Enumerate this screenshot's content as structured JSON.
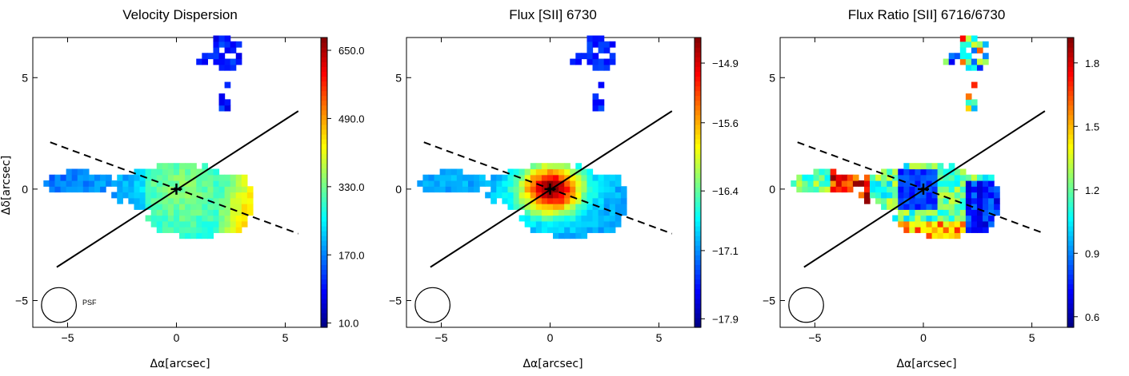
{
  "chart_data": [
    {
      "type": "heatmap",
      "title": "Velocity Dispersion",
      "xlabel": "Δα[arcsec]",
      "ylabel": "Δδ[arcsec]",
      "xlim": [
        -6.6,
        6.6
      ],
      "ylim": [
        -6.2,
        6.8
      ],
      "xticks": [
        -5,
        0,
        5
      ],
      "yticks": [
        -5,
        0,
        5
      ],
      "colorbar": {
        "range": [
          0,
          680
        ],
        "ticks": [
          10.0,
          170.0,
          330.0,
          490.0,
          650.0
        ],
        "tick_labels": [
          "10.0",
          "170.0",
          "330.0",
          "490.0",
          "650.0"
        ],
        "colormap": "jet"
      },
      "psf_label": "PSF",
      "psf": {
        "x": -5.4,
        "y": -5.2,
        "radius": 0.8
      },
      "center_marker": {
        "x": 0,
        "y": 0
      },
      "solid_line": [
        [
          -5.5,
          -3.5
        ],
        [
          5.6,
          3.5
        ]
      ],
      "dashed_line": [
        [
          -5.8,
          2.1
        ],
        [
          5.6,
          -2.0
        ]
      ]
    },
    {
      "type": "heatmap",
      "title": "Flux [SII] 6730",
      "xlabel": "Δα[arcsec]",
      "ylabel": "",
      "xlim": [
        -6.6,
        6.6
      ],
      "ylim": [
        -6.2,
        6.8
      ],
      "xticks": [
        -5,
        0,
        5
      ],
      "yticks": [
        -5,
        0,
        5
      ],
      "colorbar": {
        "range": [
          -18.0,
          -14.6
        ],
        "ticks": [
          -17.9,
          -17.1,
          -16.4,
          -15.6,
          -14.9
        ],
        "tick_labels": [
          "−17.9",
          "−17.1",
          "−16.4",
          "−15.6",
          "−14.9"
        ],
        "colormap": "jet"
      },
      "psf_label": "",
      "psf": {
        "x": -5.4,
        "y": -5.2,
        "radius": 0.8
      },
      "center_marker": {
        "x": 0,
        "y": 0
      },
      "solid_line": [
        [
          -5.5,
          -3.5
        ],
        [
          5.6,
          3.5
        ]
      ],
      "dashed_line": [
        [
          -5.8,
          2.1
        ],
        [
          5.6,
          -2.0
        ]
      ]
    },
    {
      "type": "heatmap",
      "title": "Flux Ratio [SII] 6716/6730",
      "xlabel": "Δα[arcsec]",
      "ylabel": "",
      "xlim": [
        -6.6,
        6.6
      ],
      "ylim": [
        -6.2,
        6.8
      ],
      "xticks": [
        -5,
        0,
        5
      ],
      "yticks": [
        -5,
        0,
        5
      ],
      "colorbar": {
        "range": [
          0.55,
          1.92
        ],
        "ticks": [
          0.6,
          0.9,
          1.2,
          1.5,
          1.8
        ],
        "tick_labels": [
          "0.6",
          "0.9",
          "1.2",
          "1.5",
          "1.8"
        ],
        "colormap": "jet"
      },
      "psf_label": "",
      "psf": {
        "x": -5.4,
        "y": -5.2,
        "radius": 0.8
      },
      "center_marker": {
        "x": 0,
        "y": 0
      },
      "solid_line": [
        [
          -5.5,
          -3.5
        ],
        [
          5.6,
          3.5
        ]
      ],
      "dashed_line": [
        [
          -5.8,
          2.1
        ],
        [
          5.6,
          -2.0
        ]
      ]
    }
  ]
}
